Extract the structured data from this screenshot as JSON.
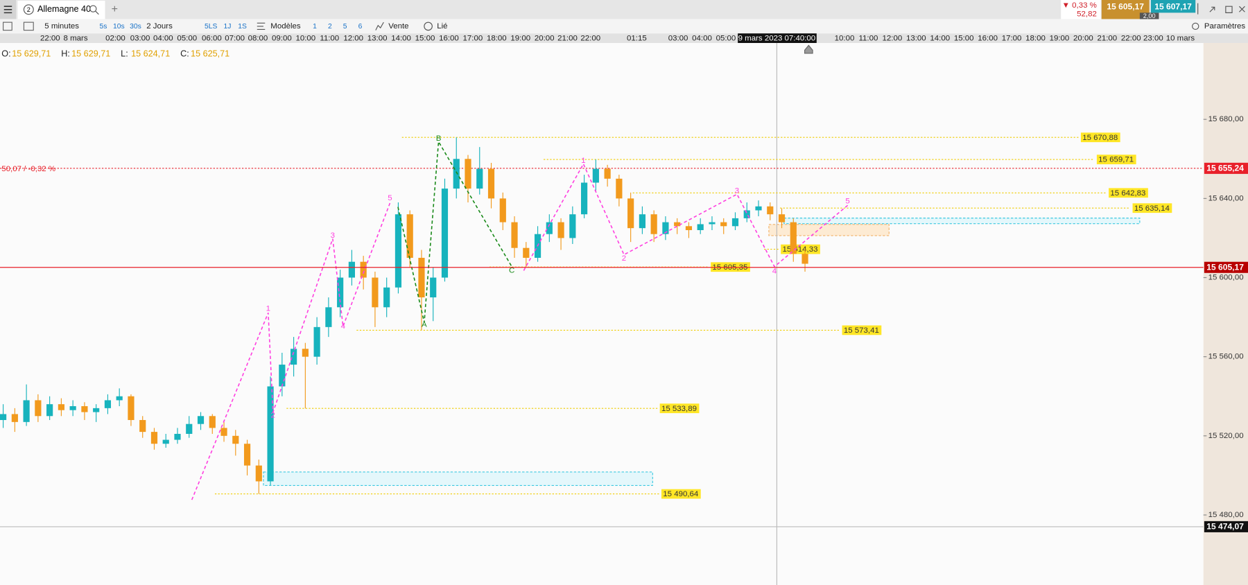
{
  "tab": {
    "badge": "2",
    "title": "Allemagne 40",
    "add": "+"
  },
  "quote": {
    "change": "▼ 0,33 %",
    "change_points": "52,82",
    "bid": "15 605,17",
    "spread": "2,00",
    "ask": "15 607,17"
  },
  "toolbar": {
    "interval": "5 minutes",
    "quick": [
      "5s",
      "10s",
      "30s"
    ],
    "range": "2 Jours",
    "periods": [
      "5LS",
      "1J",
      "1S"
    ],
    "models": "Modèles",
    "layouts": [
      "1",
      "2",
      "5",
      "6"
    ],
    "sell": "Vente",
    "linked": "Lié",
    "settings": "Paramètres"
  },
  "chart_data": {
    "type": "candlestick",
    "time_labels": [
      "22:00",
      "8 mars",
      "02:00",
      "03:00",
      "04:00",
      "05:00",
      "06:00",
      "07:00",
      "08:00",
      "09:00",
      "10:00",
      "11:00",
      "12:00",
      "13:00",
      "14:00",
      "15:00",
      "16:00",
      "17:00",
      "18:00",
      "19:00",
      "20:00",
      "21:00",
      "22:00",
      "01:15",
      "03:00",
      "04:00",
      "05:00",
      "10:00",
      "11:00",
      "12:00",
      "13:00",
      "14:00",
      "15:00",
      "16:00",
      "17:00",
      "18:00",
      "19:00",
      "20:00",
      "21:00",
      "22:00",
      "23:00",
      "10 mars"
    ],
    "crosshair_time": "9 mars 2023 07:40:00",
    "ohlc_header": [
      {
        "label": "O:",
        "value": "15 629,71"
      },
      {
        "label": "H:",
        "value": "15 629,71"
      },
      {
        "label": "L:",
        "value": "15 624,71"
      },
      {
        "label": "C:",
        "value": "15 625,71"
      }
    ],
    "up_color": "#17b3bd",
    "down_color": "#f29a1d",
    "candles": [
      [
        15528,
        15536,
        15524,
        15531
      ],
      [
        15531,
        15534,
        15522,
        15527
      ],
      [
        15527,
        15546,
        15525,
        15538
      ],
      [
        15538,
        15541,
        15527,
        15530
      ],
      [
        15530,
        15540,
        15528,
        15536
      ],
      [
        15536,
        15539,
        15530,
        15533
      ],
      [
        15533,
        15538,
        15530,
        15535
      ],
      [
        15535,
        15537,
        15528,
        15532
      ],
      [
        15532,
        15536,
        15527,
        15534
      ],
      [
        15534,
        15541,
        15531,
        15538
      ],
      [
        15538,
        15544,
        15535,
        15540
      ],
      [
        15540,
        15541,
        15525,
        15528
      ],
      [
        15528,
        15530,
        15519,
        15522
      ],
      [
        15522,
        15524,
        15513,
        15516
      ],
      [
        15516,
        15521,
        15514,
        15518
      ],
      [
        15518,
        15524,
        15516,
        15521
      ],
      [
        15521,
        15530,
        15519,
        15526
      ],
      [
        15526,
        15532,
        15523,
        15530
      ],
      [
        15530,
        15531,
        15521,
        15524
      ],
      [
        15524,
        15527,
        15517,
        15520
      ],
      [
        15520,
        15523,
        15510,
        15516
      ],
      [
        15516,
        15518,
        15500,
        15505
      ],
      [
        15505,
        15508,
        15490.64,
        15497
      ],
      [
        15497,
        15550,
        15495,
        15545
      ],
      [
        15545,
        15562,
        15540,
        15556
      ],
      [
        15556,
        15570,
        15550,
        15564
      ],
      [
        15564,
        15567,
        15533.89,
        15560
      ],
      [
        15560,
        15580,
        15556,
        15575
      ],
      [
        15575,
        15590,
        15570,
        15585
      ],
      [
        15585,
        15604,
        15580,
        15600
      ],
      [
        15600,
        15614,
        15596,
        15608
      ],
      [
        15608,
        15611,
        15594,
        15600
      ],
      [
        15600,
        15603,
        15575,
        15585
      ],
      [
        15585,
        15600,
        15580,
        15595
      ],
      [
        15595,
        15638,
        15592,
        15632
      ],
      [
        15632,
        15634,
        15605,
        15610
      ],
      [
        15610,
        15614,
        15573.41,
        15590
      ],
      [
        15590,
        15605,
        15578,
        15600
      ],
      [
        15600,
        15650,
        15598,
        15645
      ],
      [
        15645,
        15670.88,
        15640,
        15660
      ],
      [
        15660,
        15662,
        15638,
        15645
      ],
      [
        15645,
        15666,
        15642,
        15655
      ],
      [
        15655,
        15658,
        15635,
        15640
      ],
      [
        15640,
        15643,
        15624,
        15628
      ],
      [
        15628,
        15631,
        15610,
        15615
      ],
      [
        15615,
        15618,
        15605.35,
        15610
      ],
      [
        15610,
        15626,
        15608,
        15622
      ],
      [
        15622,
        15632,
        15618,
        15628
      ],
      [
        15628,
        15630,
        15614,
        15620
      ],
      [
        15620,
        15636,
        15617,
        15632
      ],
      [
        15632,
        15652,
        15630,
        15648
      ],
      [
        15648,
        15659.71,
        15644,
        15655
      ],
      [
        15655,
        15657,
        15646,
        15650
      ],
      [
        15650,
        15652,
        15636,
        15640
      ],
      [
        15640,
        15643,
        15618,
        15625
      ],
      [
        15625,
        15636,
        15622,
        15632
      ],
      [
        15632,
        15634,
        15618,
        15622
      ],
      [
        15622,
        15631,
        15619,
        15628
      ],
      [
        15628,
        15630,
        15622,
        15626
      ],
      [
        15626,
        15628,
        15620,
        15624
      ],
      [
        15624,
        15630,
        15622,
        15627
      ],
      [
        15627,
        15631,
        15624,
        15628
      ],
      [
        15628,
        15630,
        15622,
        15626
      ],
      [
        15626,
        15633,
        15624,
        15630
      ],
      [
        15630,
        15638,
        15628,
        15634
      ],
      [
        15634,
        15639,
        15631,
        15636
      ],
      [
        15636,
        15638,
        15629,
        15632
      ],
      [
        15632,
        15635,
        15625,
        15628
      ],
      [
        15628,
        15630,
        15608,
        15612
      ],
      [
        15612,
        15614.33,
        15603,
        15607
      ]
    ],
    "ylim": [
      15444.6,
      15717.4
    ],
    "yticks": [
      {
        "value": 15680,
        "label": "15 680,00"
      },
      {
        "value": 15640,
        "label": "15 640,00"
      },
      {
        "value": 15600,
        "label": "15 600,00"
      },
      {
        "value": 15560,
        "label": "15 560,00"
      },
      {
        "value": 15520,
        "label": "15 520,00"
      },
      {
        "value": 15480,
        "label": "15 480,00"
      }
    ],
    "levels": [
      {
        "value": 15670.88,
        "label": "15 670,88"
      },
      {
        "value": 15659.71,
        "label": "15 659,71"
      },
      {
        "value": 15642.83,
        "label": "15 642,83"
      },
      {
        "value": 15635.14,
        "label": "15 635,14"
      },
      {
        "value": 15614.33,
        "label": "15 614,33"
      },
      {
        "value": 15605.35,
        "label": "15 605,35"
      },
      {
        "value": 15573.41,
        "label": "15 573,41"
      },
      {
        "value": 15533.89,
        "label": "15 533,89"
      },
      {
        "value": 15490.64,
        "label": "15 490,64"
      }
    ],
    "reference": {
      "value": 15655.24,
      "label": "15 655,24",
      "change": "50,07 / -0,32 %"
    },
    "last_price": {
      "value": 15605.17,
      "label": "15 605,17"
    },
    "cursor_price": {
      "value": 15474.07,
      "label": "15 474,07"
    },
    "wave_labels": [
      "1",
      "2",
      "3",
      "4",
      "5",
      "1",
      "2",
      "3",
      "4",
      "5"
    ],
    "abc_labels": [
      "A",
      "B",
      "C"
    ]
  }
}
